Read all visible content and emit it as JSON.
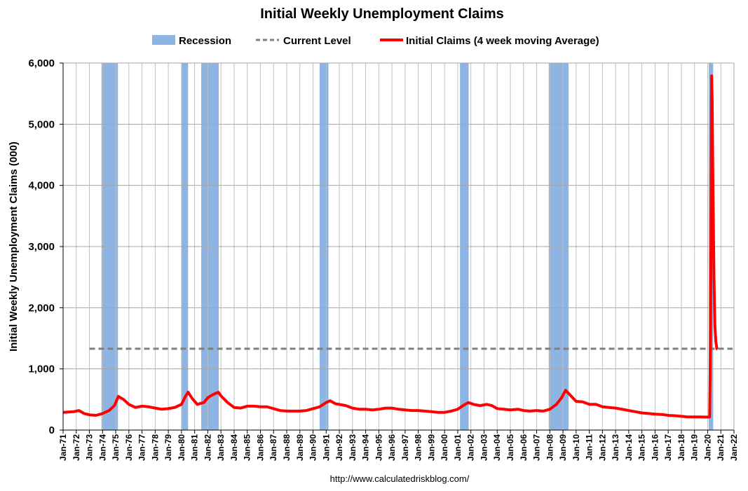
{
  "chart_data": {
    "type": "line",
    "title": "Initial Weekly Unemployment Claims",
    "xlabel": "",
    "ylabel": "Initial Weekly Unemployment Claims (000)",
    "ylim": [
      0,
      6000
    ],
    "xlim": [
      1971,
      2022
    ],
    "yticks": [
      "0",
      "1,000",
      "2,000",
      "3,000",
      "4,000",
      "5,000",
      "6,000"
    ],
    "xticks": [
      "Jan-71",
      "Jan-72",
      "Jan-73",
      "Jan-74",
      "Jan-75",
      "Jan-76",
      "Jan-77",
      "Jan-78",
      "Jan-79",
      "Jan-80",
      "Jan-81",
      "Jan-82",
      "Jan-83",
      "Jan-84",
      "Jan-85",
      "Jan-86",
      "Jan-87",
      "Jan-88",
      "Jan-89",
      "Jan-90",
      "Jan-91",
      "Jan-92",
      "Jan-93",
      "Jan-94",
      "Jan-95",
      "Jan-96",
      "Jan-97",
      "Jan-98",
      "Jan-99",
      "Jan-00",
      "Jan-01",
      "Jan-02",
      "Jan-03",
      "Jan-04",
      "Jan-05",
      "Jan-06",
      "Jan-07",
      "Jan-08",
      "Jan-09",
      "Jan-10",
      "Jan-11",
      "Jan-12",
      "Jan-13",
      "Jan-14",
      "Jan-15",
      "Jan-16",
      "Jan-17",
      "Jan-18",
      "Jan-19",
      "Jan-20",
      "Jan-21",
      "Jan-22"
    ],
    "grid": "vertical and horizontal",
    "legend_position": "top",
    "legend": [
      {
        "label": "Recession",
        "style": "bar",
        "color": "#8DB4E2"
      },
      {
        "label": "Current Level",
        "style": "dashed",
        "color": "#7F7F7F"
      },
      {
        "label": "Initial Claims (4 week moving Average)",
        "style": "line",
        "color": "#FF0000"
      }
    ],
    "series": [
      {
        "name": "Initial Claims (4 week moving Average)",
        "color": "#FF0000",
        "points": [
          [
            1971.0,
            290
          ],
          [
            1971.8,
            300
          ],
          [
            1972.2,
            320
          ],
          [
            1972.6,
            270
          ],
          [
            1973.0,
            250
          ],
          [
            1973.5,
            240
          ],
          [
            1974.0,
            270
          ],
          [
            1974.5,
            320
          ],
          [
            1974.9,
            400
          ],
          [
            1975.2,
            550
          ],
          [
            1975.6,
            500
          ],
          [
            1976.0,
            420
          ],
          [
            1976.5,
            370
          ],
          [
            1977.0,
            390
          ],
          [
            1977.5,
            380
          ],
          [
            1978.0,
            360
          ],
          [
            1978.5,
            340
          ],
          [
            1979.0,
            350
          ],
          [
            1979.5,
            370
          ],
          [
            1980.0,
            420
          ],
          [
            1980.3,
            550
          ],
          [
            1980.5,
            620
          ],
          [
            1980.8,
            520
          ],
          [
            1981.2,
            420
          ],
          [
            1981.7,
            450
          ],
          [
            1982.0,
            530
          ],
          [
            1982.4,
            580
          ],
          [
            1982.8,
            620
          ],
          [
            1983.0,
            560
          ],
          [
            1983.5,
            450
          ],
          [
            1984.0,
            370
          ],
          [
            1984.5,
            360
          ],
          [
            1985.0,
            390
          ],
          [
            1985.5,
            390
          ],
          [
            1986.0,
            380
          ],
          [
            1986.5,
            380
          ],
          [
            1987.0,
            350
          ],
          [
            1987.5,
            320
          ],
          [
            1988.0,
            310
          ],
          [
            1988.5,
            310
          ],
          [
            1989.0,
            310
          ],
          [
            1989.5,
            320
          ],
          [
            1990.0,
            350
          ],
          [
            1990.5,
            380
          ],
          [
            1991.0,
            450
          ],
          [
            1991.3,
            480
          ],
          [
            1991.7,
            430
          ],
          [
            1992.0,
            420
          ],
          [
            1992.5,
            400
          ],
          [
            1993.0,
            360
          ],
          [
            1993.5,
            340
          ],
          [
            1994.0,
            340
          ],
          [
            1994.5,
            330
          ],
          [
            1995.0,
            340
          ],
          [
            1995.5,
            360
          ],
          [
            1996.0,
            360
          ],
          [
            1996.5,
            340
          ],
          [
            1997.0,
            330
          ],
          [
            1997.5,
            320
          ],
          [
            1998.0,
            320
          ],
          [
            1998.5,
            310
          ],
          [
            1999.0,
            300
          ],
          [
            1999.5,
            290
          ],
          [
            2000.0,
            290
          ],
          [
            2000.5,
            310
          ],
          [
            2001.0,
            340
          ],
          [
            2001.4,
            400
          ],
          [
            2001.8,
            450
          ],
          [
            2002.2,
            420
          ],
          [
            2002.7,
            400
          ],
          [
            2003.2,
            420
          ],
          [
            2003.6,
            400
          ],
          [
            2004.0,
            350
          ],
          [
            2004.5,
            340
          ],
          [
            2005.0,
            330
          ],
          [
            2005.6,
            340
          ],
          [
            2006.0,
            320
          ],
          [
            2006.5,
            310
          ],
          [
            2007.0,
            320
          ],
          [
            2007.5,
            310
          ],
          [
            2008.0,
            340
          ],
          [
            2008.5,
            420
          ],
          [
            2008.9,
            530
          ],
          [
            2009.2,
            650
          ],
          [
            2009.6,
            560
          ],
          [
            2010.0,
            470
          ],
          [
            2010.5,
            460
          ],
          [
            2011.0,
            420
          ],
          [
            2011.5,
            420
          ],
          [
            2012.0,
            380
          ],
          [
            2012.5,
            370
          ],
          [
            2013.0,
            360
          ],
          [
            2013.5,
            340
          ],
          [
            2014.0,
            320
          ],
          [
            2014.5,
            300
          ],
          [
            2015.0,
            280
          ],
          [
            2015.5,
            270
          ],
          [
            2016.0,
            260
          ],
          [
            2016.5,
            255
          ],
          [
            2017.0,
            240
          ],
          [
            2017.5,
            235
          ],
          [
            2018.0,
            225
          ],
          [
            2018.5,
            215
          ],
          [
            2019.0,
            215
          ],
          [
            2019.5,
            215
          ],
          [
            2020.0,
            212
          ],
          [
            2020.15,
            215
          ],
          [
            2020.22,
            1500
          ],
          [
            2020.26,
            3300
          ],
          [
            2020.3,
            5790
          ],
          [
            2020.34,
            5400
          ],
          [
            2020.4,
            4000
          ],
          [
            2020.48,
            2500
          ],
          [
            2020.55,
            1700
          ],
          [
            2020.62,
            1450
          ],
          [
            2020.7,
            1330
          ],
          [
            2020.76,
            1320
          ]
        ]
      }
    ],
    "current_level": {
      "name": "Current Level",
      "value": 1330,
      "x_start": 1973,
      "x_end": 2021.9
    },
    "recessions": [
      [
        1973.92,
        1975.17
      ],
      [
        1980.0,
        1980.5
      ],
      [
        1981.5,
        1982.83
      ],
      [
        1990.5,
        1991.17
      ],
      [
        2001.17,
        2001.83
      ],
      [
        2007.92,
        2009.42
      ],
      [
        2020.08,
        2020.42
      ]
    ]
  },
  "footer": "http://www.calculatedriskblog.com/"
}
